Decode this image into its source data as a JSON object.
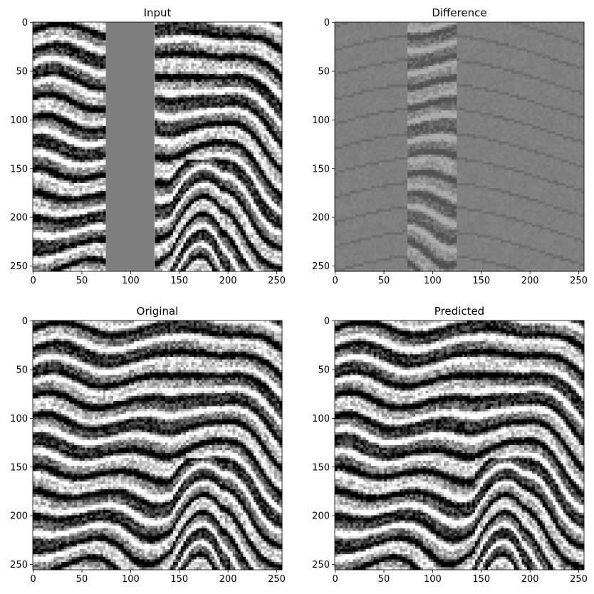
{
  "chart_data": [
    {
      "type": "heatmap",
      "title": "Input",
      "colormap": "gray",
      "xlim": [
        0,
        256
      ],
      "ylim": [
        256,
        0
      ],
      "xticks": [
        0,
        50,
        100,
        150,
        200,
        250
      ],
      "yticks": [
        0,
        50,
        100,
        150,
        200,
        250
      ],
      "masked_columns": [
        75,
        125
      ],
      "mask_fill": "#7f7f7f",
      "content": "seismic"
    },
    {
      "type": "heatmap",
      "title": "Difference",
      "colormap": "gray",
      "xlim": [
        0,
        256
      ],
      "ylim": [
        256,
        0
      ],
      "xticks": [
        0,
        50,
        100,
        150,
        200,
        250
      ],
      "yticks": [
        0,
        50,
        100,
        150,
        200,
        250
      ],
      "masked_columns": [
        75,
        125
      ],
      "content": "difference"
    },
    {
      "type": "heatmap",
      "title": "Original",
      "colormap": "gray",
      "xlim": [
        0,
        256
      ],
      "ylim": [
        256,
        0
      ],
      "xticks": [
        0,
        50,
        100,
        150,
        200,
        250
      ],
      "yticks": [
        0,
        50,
        100,
        150,
        200,
        250
      ],
      "content": "seismic"
    },
    {
      "type": "heatmap",
      "title": "Predicted",
      "colormap": "gray",
      "xlim": [
        0,
        256
      ],
      "ylim": [
        256,
        0
      ],
      "xticks": [
        0,
        50,
        100,
        150,
        200,
        250
      ],
      "yticks": [
        0,
        50,
        100,
        150,
        200,
        250
      ],
      "content": "seismic"
    }
  ]
}
